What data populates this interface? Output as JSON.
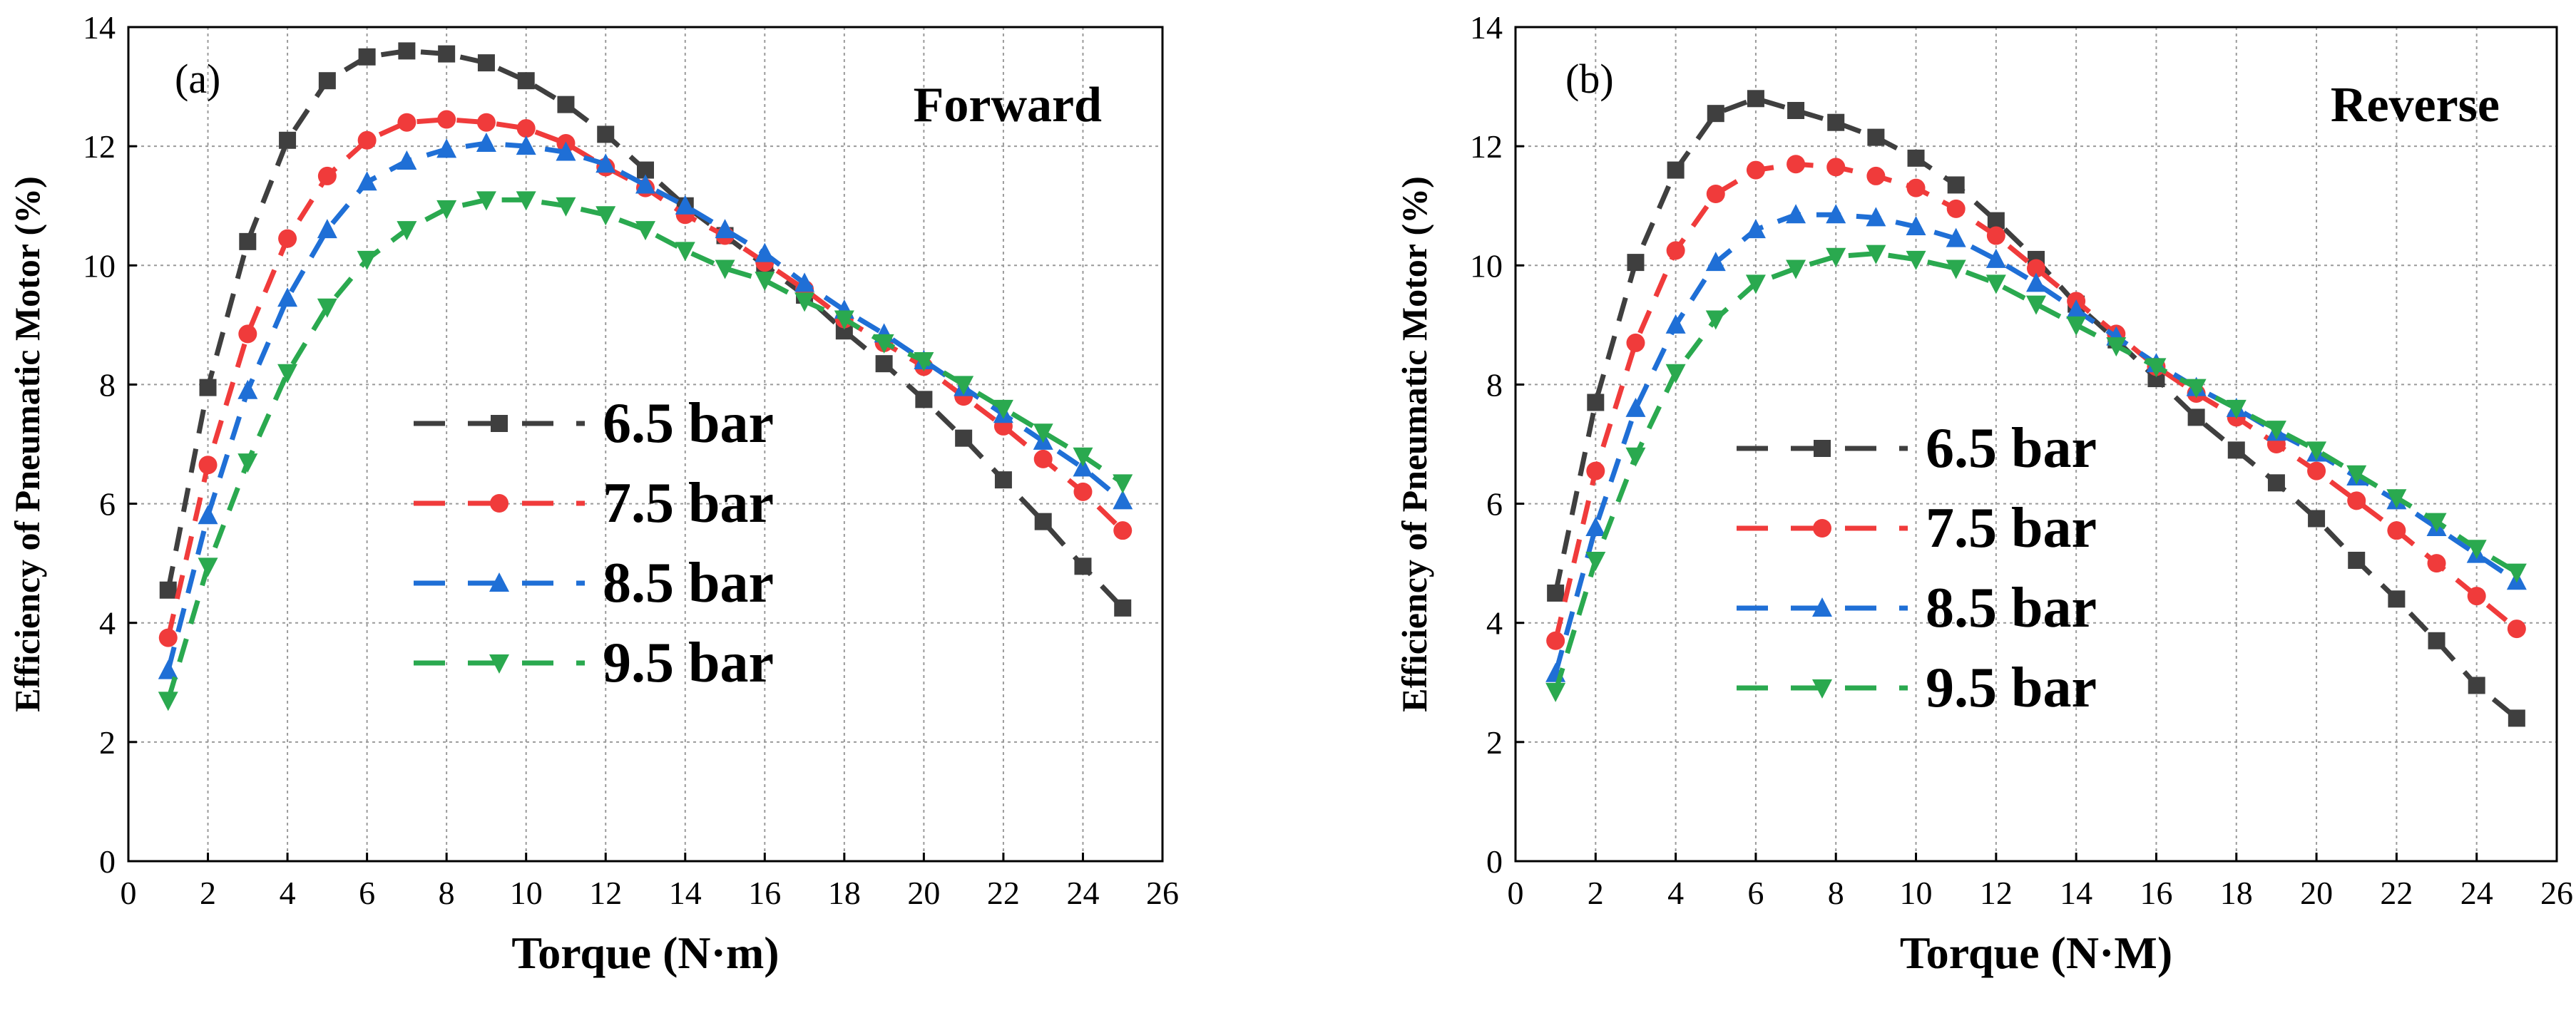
{
  "figure": {
    "legend": {
      "entries": [
        "6.5 bar",
        "7.5 bar",
        "8.5 bar",
        "9.5 bar"
      ]
    }
  },
  "chart_data": [
    {
      "type": "line",
      "panel_label": "(a)",
      "corner_label": "Forward",
      "xlabel": "Torque (N·m)",
      "ylabel": "Efficiency of Pneumatic Motor (%)",
      "xlim": [
        0,
        26
      ],
      "ylim": [
        0,
        14
      ],
      "xticks": [
        "0",
        "2",
        "4",
        "6",
        "8",
        "10",
        "12",
        "14",
        "16",
        "18",
        "20",
        "22",
        "24",
        "26"
      ],
      "yticks": [
        "0",
        "2",
        "4",
        "6",
        "8",
        "10",
        "12",
        "14"
      ],
      "grid": true,
      "legend_position": "center-left",
      "x": [
        1,
        2,
        3,
        4,
        5,
        6,
        7,
        8,
        9,
        10,
        11,
        12,
        13,
        14,
        15,
        16,
        17,
        18,
        19,
        20,
        21,
        22,
        23,
        24,
        25
      ],
      "series": [
        {
          "name": "6.5 bar",
          "color": "#3f3f3f",
          "marker": "square",
          "values": [
            4.55,
            7.95,
            10.4,
            12.1,
            13.1,
            13.5,
            13.6,
            13.55,
            13.4,
            13.1,
            12.7,
            12.2,
            11.6,
            11.0,
            10.5,
            10.0,
            9.5,
            8.9,
            8.35,
            7.75,
            7.1,
            6.4,
            5.7,
            4.95,
            4.25
          ]
        },
        {
          "name": "7.5 bar",
          "color": "#f03b3b",
          "marker": "circle",
          "values": [
            3.75,
            6.65,
            8.85,
            10.45,
            11.5,
            12.1,
            12.4,
            12.45,
            12.4,
            12.3,
            12.05,
            11.65,
            11.3,
            10.85,
            10.5,
            10.05,
            9.6,
            9.1,
            8.7,
            8.3,
            7.8,
            7.3,
            6.75,
            6.2,
            5.55
          ]
        },
        {
          "name": "8.5 bar",
          "color": "#1f6fd6",
          "marker": "triangle-up",
          "values": [
            3.2,
            5.8,
            7.9,
            9.45,
            10.6,
            11.4,
            11.75,
            11.95,
            12.05,
            12.0,
            11.9,
            11.7,
            11.35,
            11.0,
            10.6,
            10.2,
            9.7,
            9.25,
            8.85,
            8.4,
            7.95,
            7.5,
            7.05,
            6.6,
            6.05
          ]
        },
        {
          "name": "9.5 bar",
          "color": "#2aa94f",
          "marker": "triangle-down",
          "values": [
            2.7,
            4.95,
            6.7,
            8.2,
            9.3,
            10.1,
            10.6,
            10.95,
            11.1,
            11.1,
            11.0,
            10.85,
            10.6,
            10.25,
            9.95,
            9.75,
            9.4,
            9.1,
            8.7,
            8.4,
            8.0,
            7.6,
            7.2,
            6.8,
            6.35
          ]
        }
      ]
    },
    {
      "type": "line",
      "panel_label": "(b)",
      "corner_label": "Reverse",
      "xlabel": "Torque (N·M)",
      "ylabel": "Efficiency of Pneumatic Motor (%)",
      "xlim": [
        0,
        26
      ],
      "ylim": [
        0,
        14
      ],
      "xticks": [
        "0",
        "2",
        "4",
        "6",
        "8",
        "10",
        "12",
        "14",
        "16",
        "18",
        "20",
        "22",
        "24",
        "26"
      ],
      "yticks": [
        "0",
        "2",
        "4",
        "6",
        "8",
        "10",
        "12",
        "14"
      ],
      "grid": true,
      "legend_position": "lower-left",
      "x": [
        1,
        2,
        3,
        4,
        5,
        6,
        7,
        8,
        9,
        10,
        11,
        12,
        13,
        14,
        15,
        16,
        17,
        18,
        19,
        20,
        21,
        22,
        23,
        24,
        25
      ],
      "series": [
        {
          "name": "6.5 bar",
          "color": "#3f3f3f",
          "marker": "square",
          "values": [
            4.5,
            7.7,
            10.05,
            11.6,
            12.55,
            12.8,
            12.6,
            12.4,
            12.15,
            11.8,
            11.35,
            10.75,
            10.1,
            9.35,
            8.75,
            8.1,
            7.45,
            6.9,
            6.35,
            5.75,
            5.05,
            4.4,
            3.7,
            2.95,
            2.4
          ]
        },
        {
          "name": "7.5 bar",
          "color": "#f03b3b",
          "marker": "circle",
          "values": [
            3.7,
            6.55,
            8.7,
            10.25,
            11.2,
            11.6,
            11.7,
            11.65,
            11.5,
            11.3,
            10.95,
            10.5,
            9.95,
            9.4,
            8.85,
            8.3,
            7.85,
            7.45,
            7.0,
            6.55,
            6.05,
            5.55,
            5.0,
            4.45,
            3.9
          ]
        },
        {
          "name": "8.5 bar",
          "color": "#1f6fd6",
          "marker": "triangle-up",
          "values": [
            3.15,
            5.6,
            7.6,
            9.0,
            10.05,
            10.6,
            10.85,
            10.85,
            10.8,
            10.65,
            10.45,
            10.1,
            9.7,
            9.25,
            8.8,
            8.35,
            7.95,
            7.6,
            7.2,
            6.85,
            6.45,
            6.05,
            5.6,
            5.15,
            4.7
          ]
        },
        {
          "name": "9.5 bar",
          "color": "#2aa94f",
          "marker": "triangle-down",
          "values": [
            2.85,
            5.05,
            6.8,
            8.2,
            9.1,
            9.7,
            9.95,
            10.15,
            10.2,
            10.1,
            9.95,
            9.7,
            9.35,
            9.0,
            8.65,
            8.3,
            7.95,
            7.6,
            7.25,
            6.9,
            6.5,
            6.1,
            5.7,
            5.25,
            4.85
          ]
        }
      ]
    }
  ]
}
